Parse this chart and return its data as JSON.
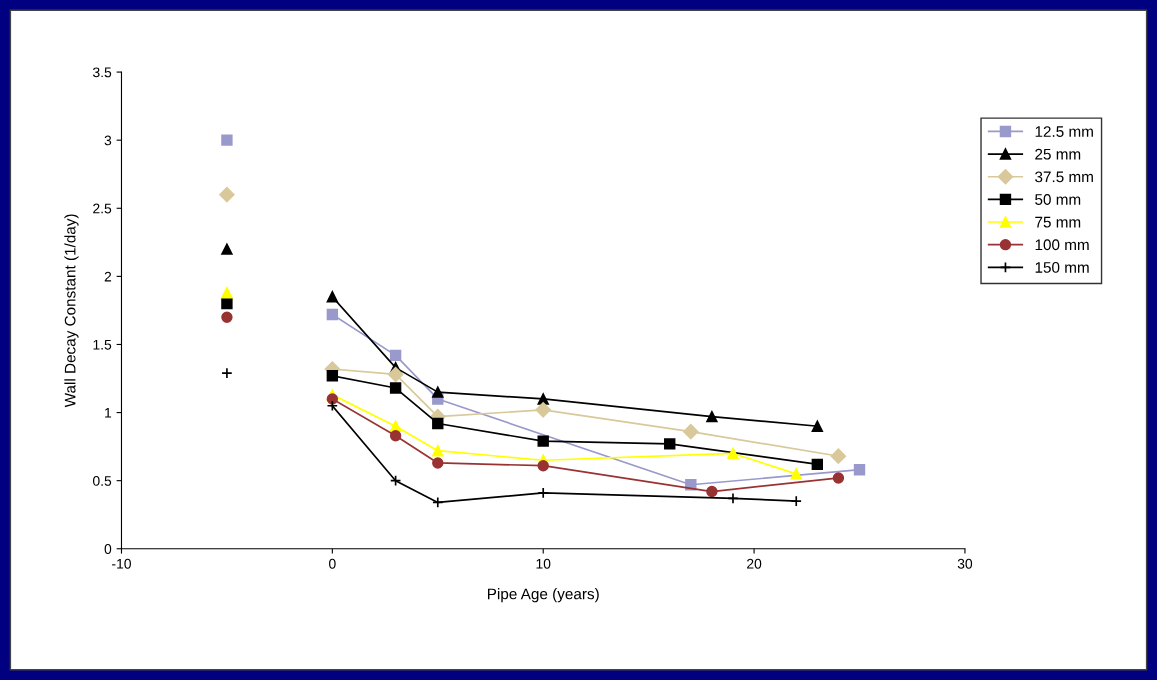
{
  "chart_data": {
    "type": "line",
    "xlabel": "Pipe Age (years)",
    "ylabel": "Wall Decay Constant (1/day)",
    "xlim": [
      -10,
      30
    ],
    "xticks": [
      -10,
      0,
      10,
      20,
      30
    ],
    "ylim": [
      0,
      3.5
    ],
    "yticks": [
      0,
      0.5,
      1,
      1.5,
      2,
      2.5,
      3,
      3.5
    ],
    "grid": false,
    "legend": "right",
    "series": [
      {
        "name": "12.5 mm",
        "color": "#9999cc",
        "marker": "square",
        "x": [
          -5,
          -2.5,
          0,
          3,
          5,
          17,
          25
        ],
        "values": [
          3.0,
          null,
          1.72,
          1.42,
          1.1,
          0.47,
          0.58
        ]
      },
      {
        "name": "25 mm",
        "color": "#000000",
        "marker": "triangle",
        "x": [
          -5,
          -2.5,
          0,
          3,
          5,
          10,
          18,
          23
        ],
        "values": [
          2.2,
          null,
          1.85,
          1.33,
          1.15,
          1.1,
          0.97,
          0.9
        ]
      },
      {
        "name": "37.5 mm",
        "color": "#d9c89a",
        "marker": "diamond",
        "x": [
          -5,
          -2.5,
          0,
          3,
          5,
          10,
          17,
          24
        ],
        "values": [
          2.6,
          null,
          1.32,
          1.28,
          0.97,
          1.02,
          0.86,
          0.68
        ]
      },
      {
        "name": "50 mm",
        "color": "#000000",
        "marker": "square",
        "x": [
          -5,
          -2.5,
          0,
          3,
          5,
          10,
          16,
          23
        ],
        "values": [
          1.8,
          null,
          1.27,
          1.18,
          0.92,
          0.79,
          0.77,
          0.62
        ]
      },
      {
        "name": "75 mm",
        "color": "#ffff00",
        "marker": "triangle",
        "x": [
          -5,
          -2.5,
          0,
          3,
          5,
          10,
          19,
          22
        ],
        "values": [
          1.88,
          null,
          1.13,
          0.9,
          0.72,
          0.65,
          0.7,
          0.55
        ]
      },
      {
        "name": "100 mm",
        "color": "#993333",
        "marker": "circle",
        "x": [
          -5,
          -2.5,
          0,
          3,
          5,
          10,
          18,
          24
        ],
        "values": [
          1.7,
          null,
          1.1,
          0.83,
          0.63,
          0.61,
          0.42,
          0.52
        ]
      },
      {
        "name": "150 mm",
        "color": "#000000",
        "marker": "cross",
        "x": [
          -5,
          -2.5,
          0,
          3,
          5,
          10,
          19,
          22
        ],
        "values": [
          1.29,
          null,
          1.05,
          0.5,
          0.34,
          0.41,
          0.37,
          0.35
        ]
      }
    ]
  }
}
